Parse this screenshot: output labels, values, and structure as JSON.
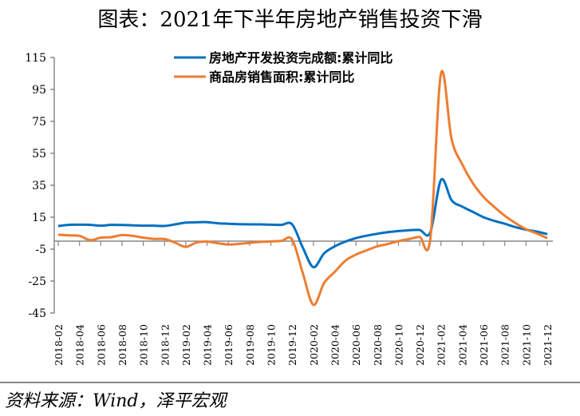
{
  "title": "图表：2021年下半年房地产销售投资下滑",
  "source": "资料来源：Wind，泽平宏观",
  "chart_data": {
    "type": "line",
    "title": "图表：2021年下半年房地产销售投资下滑",
    "xlabel": "",
    "ylabel": "",
    "ylim": [
      -45,
      115
    ],
    "yticks": [
      -45,
      -25,
      -5,
      15,
      35,
      55,
      75,
      95,
      115
    ],
    "grid": false,
    "legend": "top-center",
    "x": [
      "2018-02",
      "2018-03",
      "2018-04",
      "2018-05",
      "2018-06",
      "2018-07",
      "2018-08",
      "2018-09",
      "2018-10",
      "2018-11",
      "2018-12",
      "2019-01",
      "2019-02",
      "2019-03",
      "2019-04",
      "2019-05",
      "2019-06",
      "2019-07",
      "2019-08",
      "2019-09",
      "2019-10",
      "2019-11",
      "2019-12",
      "2020-01",
      "2020-02",
      "2020-03",
      "2020-04",
      "2020-05",
      "2020-06",
      "2020-07",
      "2020-08",
      "2020-09",
      "2020-10",
      "2020-11",
      "2020-12",
      "2021-01",
      "2021-02",
      "2021-03",
      "2021-04",
      "2021-05",
      "2021-06",
      "2021-07",
      "2021-08",
      "2021-09",
      "2021-10",
      "2021-11",
      "2021-12"
    ],
    "xtick_labels": [
      "2018-02",
      "2018-04",
      "2018-06",
      "2018-08",
      "2018-10",
      "2018-12",
      "2019-02",
      "2019-04",
      "2019-06",
      "2019-08",
      "2019-10",
      "2019-12",
      "2020-02",
      "2020-04",
      "2020-06",
      "2020-08",
      "2020-10",
      "2020-12",
      "2021-02",
      "2021-04",
      "2021-06",
      "2021-08",
      "2021-10",
      "2021-12"
    ],
    "series": [
      {
        "name": "房地产开发投资完成额:累计同比",
        "color": "#0070C0",
        "values": [
          9.5,
          10.2,
          10.3,
          10.2,
          9.7,
          10.2,
          10.1,
          9.9,
          9.7,
          9.7,
          9.5,
          10.5,
          11.6,
          11.8,
          11.9,
          11.2,
          10.9,
          10.6,
          10.5,
          10.5,
          10.3,
          10.2,
          10.5,
          -4,
          -16.3,
          -7.7,
          -3.3,
          -0.3,
          1.9,
          3.4,
          4.6,
          5.6,
          6.3,
          6.8,
          7.0,
          5.5,
          38.3,
          25.6,
          21.6,
          18.3,
          15.0,
          12.7,
          10.9,
          8.8,
          7.2,
          6.0,
          4.4
        ]
      },
      {
        "name": "商品房销售面积:累计同比",
        "color": "#ED7D31",
        "values": [
          4.0,
          3.6,
          3.3,
          0.6,
          2.2,
          2.5,
          3.8,
          3.3,
          2.2,
          1.4,
          1.3,
          -1.0,
          -3.6,
          -0.9,
          -0.3,
          -1.3,
          -2.1,
          -1.7,
          -1.1,
          -0.5,
          -0.2,
          0.2,
          1.0,
          -20,
          -39.9,
          -26.3,
          -19.3,
          -12.3,
          -8.4,
          -5.8,
          -3.3,
          -1.8,
          0.0,
          1.3,
          2.6,
          1.5,
          104.9,
          63.8,
          48.1,
          36.3,
          27.7,
          21.5,
          15.9,
          11.3,
          7.5,
          4.8,
          1.9
        ]
      }
    ]
  }
}
